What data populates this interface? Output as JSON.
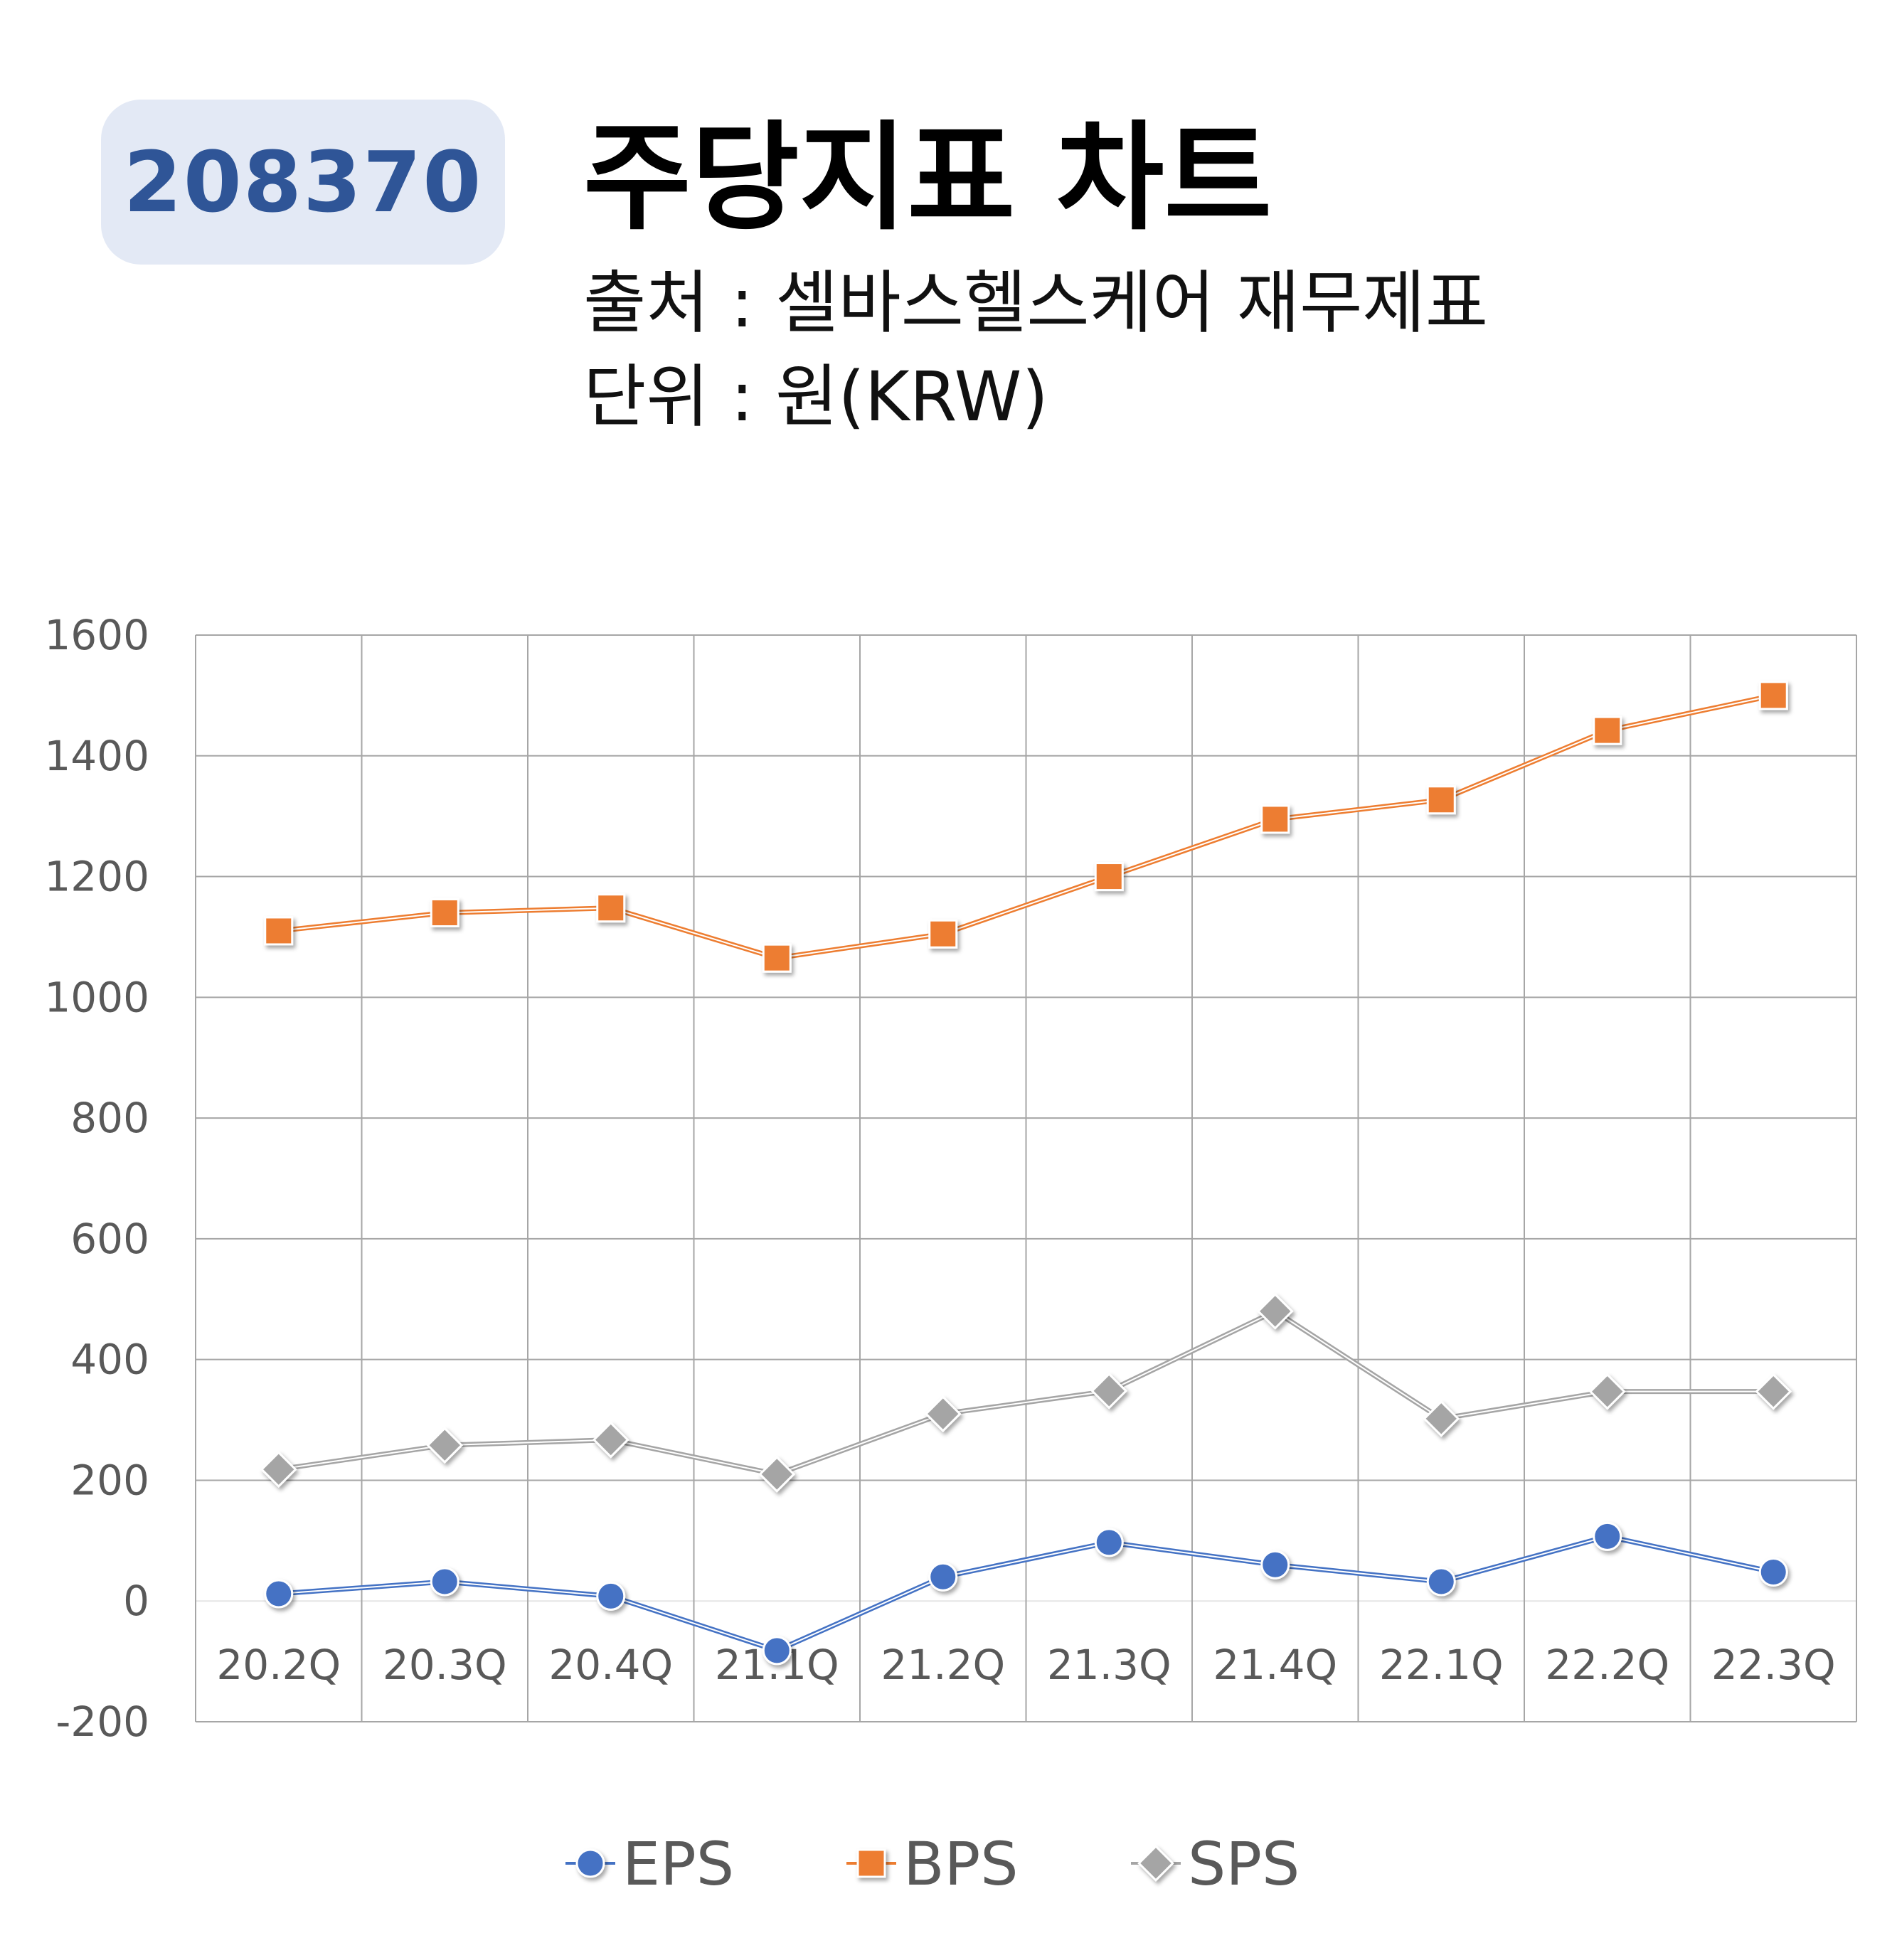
{
  "badge": {
    "code": "208370"
  },
  "header": {
    "title": "주당지표 차트",
    "source": "출처 : 셀바스헬스케어 재무제표",
    "unit": "단위 : 원(KRW)"
  },
  "colors": {
    "eps": "#4472c4",
    "bps": "#ed7d31",
    "sps": "#a5a5a5",
    "badge_bg": "#e3e9f5",
    "badge_text": "#2f5597"
  },
  "chart_data": {
    "type": "line",
    "categories": [
      "20.2Q",
      "20.3Q",
      "20.4Q",
      "21.1Q",
      "21.2Q",
      "21.3Q",
      "21.4Q",
      "22.1Q",
      "22.2Q",
      "22.3Q"
    ],
    "ylim": [
      -200,
      1600
    ],
    "yticks": [
      -200,
      0,
      200,
      400,
      600,
      800,
      1000,
      1200,
      1400,
      1600
    ],
    "ytick_labels": [
      "-200",
      "0",
      "200",
      "400",
      "600",
      "800",
      "1000",
      "1200",
      "1400",
      "1600"
    ],
    "grid": true,
    "legend_position": "bottom",
    "series": [
      {
        "name": "EPS",
        "marker": "circle",
        "values": [
          12,
          32,
          8,
          -82,
          40,
          97,
          60,
          32,
          107,
          48
        ]
      },
      {
        "name": "BPS",
        "marker": "square",
        "values": [
          1110,
          1140,
          1148,
          1065,
          1105,
          1200,
          1295,
          1327,
          1442,
          1500
        ]
      },
      {
        "name": "SPS",
        "marker": "diamond",
        "values": [
          218,
          258,
          267,
          210,
          310,
          348,
          480,
          302,
          347,
          347
        ]
      }
    ]
  }
}
